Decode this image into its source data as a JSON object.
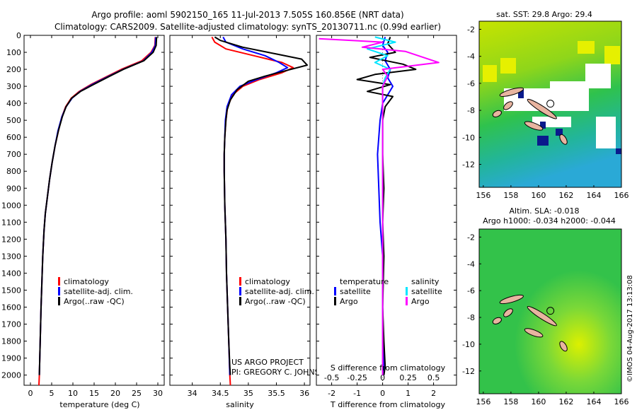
{
  "chart_data": {
    "type": "line",
    "title_line1": "Argo profile: aoml 5902150_165 11-Jul-2013 7.505S 160.856E (NRT data)",
    "title_line2": "Climatology: CARS2009. Satellite-adjusted climatology: synTS_20130711.nc (0.99d earlier)",
    "depth_ticks": [
      0,
      100,
      200,
      300,
      400,
      500,
      600,
      700,
      800,
      900,
      1000,
      1100,
      1200,
      1300,
      1400,
      1500,
      1600,
      1700,
      1800,
      1900,
      2000
    ],
    "depth_range": [
      0,
      2060
    ],
    "colors": {
      "clim": "#ff0000",
      "sat": "#0000ff",
      "argo": "#000000",
      "sat_s": "#00e5ff",
      "argo_s": "#ff00ff"
    },
    "temperature": {
      "xlabel": "temperature (deg C)",
      "xlim": [
        -1.5,
        31.5
      ],
      "xticks": [
        0,
        5,
        10,
        15,
        20,
        25,
        30
      ],
      "legend": [
        "climatology",
        "satellite-adj. clim.",
        "Argo(..raw -QC)"
      ],
      "series": [
        {
          "name": "climatology",
          "color": "clim",
          "points": [
            [
              29.4,
              10
            ],
            [
              29.3,
              60
            ],
            [
              28.4,
              100
            ],
            [
              26.2,
              150
            ],
            [
              21.4,
              200
            ],
            [
              18.2,
              240
            ],
            [
              14.2,
              290
            ],
            [
              11.5,
              330
            ],
            [
              9.6,
              370
            ],
            [
              8.3,
              420
            ],
            [
              7.4,
              480
            ],
            [
              6.6,
              560
            ],
            [
              5.8,
              650
            ],
            [
              5.1,
              750
            ],
            [
              4.5,
              850
            ],
            [
              4.0,
              950
            ],
            [
              3.5,
              1050
            ],
            [
              3.2,
              1150
            ],
            [
              2.9,
              1300
            ],
            [
              2.7,
              1450
            ],
            [
              2.5,
              1600
            ],
            [
              2.3,
              1800
            ],
            [
              2.1,
              2000
            ],
            [
              2.0,
              2060
            ]
          ]
        },
        {
          "name": "satellite",
          "color": "sat",
          "points": [
            [
              29.5,
              10
            ],
            [
              29.4,
              60
            ],
            [
              28.6,
              100
            ],
            [
              26.6,
              150
            ],
            [
              21.8,
              200
            ],
            [
              18.5,
              240
            ],
            [
              14.5,
              290
            ],
            [
              11.7,
              330
            ],
            [
              9.8,
              370
            ],
            [
              8.4,
              420
            ],
            [
              7.4,
              480
            ],
            [
              6.5,
              560
            ],
            [
              5.8,
              650
            ],
            [
              5.1,
              750
            ],
            [
              4.5,
              850
            ],
            [
              4.0,
              950
            ],
            [
              3.5,
              1050
            ],
            [
              3.2,
              1150
            ],
            [
              2.9,
              1300
            ],
            [
              2.7,
              1450
            ],
            [
              2.5,
              1600
            ],
            [
              2.3,
              1800
            ],
            [
              2.1,
              2000
            ]
          ]
        },
        {
          "name": "Argo",
          "color": "argo",
          "points": [
            [
              29.7,
              10
            ],
            [
              29.6,
              60
            ],
            [
              28.9,
              100
            ],
            [
              26.7,
              150
            ],
            [
              21.9,
              200
            ],
            [
              18.7,
              240
            ],
            [
              14.8,
              290
            ],
            [
              11.8,
              330
            ],
            [
              9.7,
              370
            ],
            [
              8.4,
              420
            ],
            [
              7.5,
              480
            ],
            [
              6.6,
              560
            ],
            [
              5.8,
              650
            ],
            [
              5.1,
              750
            ],
            [
              4.5,
              850
            ],
            [
              4.0,
              950
            ],
            [
              3.5,
              1050
            ],
            [
              3.2,
              1150
            ],
            [
              2.9,
              1300
            ],
            [
              2.7,
              1450
            ],
            [
              2.5,
              1600
            ],
            [
              2.3,
              1800
            ],
            [
              2.1,
              2000
            ]
          ]
        }
      ]
    },
    "salinity": {
      "xlabel": "salinity",
      "xlim": [
        33.6,
        36.1
      ],
      "xticks": [
        34,
        34.5,
        35,
        35.5,
        36
      ],
      "legend": [
        "climatology",
        "satellite-adj. clim.",
        "Argo(..raw -QC)"
      ],
      "series": [
        {
          "name": "climatology",
          "color": "clim",
          "points": [
            [
              34.35,
              10
            ],
            [
              34.4,
              40
            ],
            [
              34.6,
              80
            ],
            [
              35.1,
              120
            ],
            [
              35.6,
              160
            ],
            [
              35.8,
              190
            ],
            [
              35.6,
              220
            ],
            [
              35.2,
              260
            ],
            [
              34.9,
              300
            ],
            [
              34.72,
              350
            ],
            [
              34.63,
              420
            ],
            [
              34.6,
              500
            ],
            [
              34.58,
              600
            ],
            [
              34.57,
              700
            ],
            [
              34.57,
              800
            ],
            [
              34.58,
              1000
            ],
            [
              34.6,
              1200
            ],
            [
              34.61,
              1400
            ],
            [
              34.63,
              1600
            ],
            [
              34.65,
              1800
            ],
            [
              34.67,
              2000
            ],
            [
              34.68,
              2060
            ]
          ]
        },
        {
          "name": "satellite",
          "color": "sat",
          "points": [
            [
              34.55,
              10
            ],
            [
              34.6,
              40
            ],
            [
              34.9,
              80
            ],
            [
              35.3,
              120
            ],
            [
              35.55,
              160
            ],
            [
              35.7,
              190
            ],
            [
              35.5,
              220
            ],
            [
              35.15,
              260
            ],
            [
              34.85,
              300
            ],
            [
              34.7,
              350
            ],
            [
              34.62,
              420
            ],
            [
              34.59,
              500
            ],
            [
              34.58,
              600
            ],
            [
              34.57,
              700
            ],
            [
              34.57,
              800
            ],
            [
              34.58,
              1000
            ],
            [
              34.6,
              1200
            ],
            [
              34.61,
              1400
            ],
            [
              34.63,
              1600
            ],
            [
              34.65,
              1800
            ],
            [
              34.67,
              2000
            ]
          ]
        },
        {
          "name": "Argo",
          "color": "argo",
          "points": [
            [
              34.4,
              10
            ],
            [
              34.5,
              30
            ],
            [
              34.9,
              70
            ],
            [
              35.5,
              110
            ],
            [
              35.95,
              140
            ],
            [
              36.05,
              175
            ],
            [
              35.7,
              205
            ],
            [
              35.3,
              240
            ],
            [
              35.0,
              270
            ],
            [
              34.8,
              320
            ],
            [
              34.68,
              380
            ],
            [
              34.62,
              440
            ],
            [
              34.6,
              500
            ],
            [
              34.58,
              600
            ],
            [
              34.57,
              700
            ],
            [
              34.57,
              800
            ],
            [
              34.58,
              1000
            ],
            [
              34.6,
              1200
            ],
            [
              34.61,
              1400
            ],
            [
              34.63,
              1600
            ],
            [
              34.65,
              1800
            ],
            [
              34.67,
              1950
            ],
            [
              34.68,
              2000
            ]
          ]
        }
      ]
    },
    "difference": {
      "xlabel_bottom": "T difference from climatology",
      "xlabel_top": "S difference from climatology",
      "xlim": [
        -2.6,
        2.9
      ],
      "t_ticks": [
        -2,
        -1,
        0,
        1,
        2
      ],
      "s_ticks": [
        "-0.5",
        "-0.25",
        "0",
        "0.25",
        "0.5"
      ],
      "s_tick_positions": [
        -2,
        -1,
        0,
        1,
        2
      ],
      "legend_headers": [
        "temperature",
        "salinity"
      ],
      "legend": [
        "satellite",
        "Argo",
        "satellite",
        "Argo"
      ],
      "series": [
        {
          "name": "T satellite",
          "color": "sat",
          "points": [
            [
              0.1,
              10
            ],
            [
              0.0,
              60
            ],
            [
              0.2,
              100
            ],
            [
              0.1,
              150
            ],
            [
              0.3,
              200
            ],
            [
              0.2,
              250
            ],
            [
              0.4,
              300
            ],
            [
              0.2,
              350
            ],
            [
              0.0,
              400
            ],
            [
              -0.1,
              500
            ],
            [
              -0.2,
              700
            ],
            [
              -0.15,
              900
            ],
            [
              -0.1,
              1100
            ],
            [
              0.0,
              1300
            ],
            [
              0.0,
              1600
            ],
            [
              0.05,
              1900
            ],
            [
              0.05,
              2000
            ]
          ]
        },
        {
          "name": "T Argo",
          "color": "argo",
          "points": [
            [
              0.3,
              10
            ],
            [
              0.2,
              50
            ],
            [
              0.5,
              100
            ],
            [
              -0.5,
              130
            ],
            [
              0.8,
              170
            ],
            [
              1.3,
              200
            ],
            [
              -0.3,
              230
            ],
            [
              -1.0,
              260
            ],
            [
              0.3,
              290
            ],
            [
              -0.6,
              330
            ],
            [
              0.4,
              360
            ],
            [
              0.1,
              420
            ],
            [
              0.0,
              500
            ],
            [
              0.0,
              700
            ],
            [
              0.05,
              900
            ],
            [
              0.0,
              1100
            ],
            [
              0.05,
              1300
            ],
            [
              0.0,
              1600
            ],
            [
              0.05,
              1800
            ],
            [
              0.1,
              1950
            ],
            [
              0.05,
              2000
            ]
          ]
        },
        {
          "name": "S satellite",
          "color": "sat_s",
          "points": [
            [
              -0.3,
              10
            ],
            [
              0.5,
              40
            ],
            [
              -0.6,
              80
            ],
            [
              0.2,
              120
            ],
            [
              -0.3,
              160
            ],
            [
              0.3,
              200
            ],
            [
              0.1,
              250
            ],
            [
              0.0,
              300
            ],
            [
              0.0,
              400
            ],
            [
              0.0,
              600
            ],
            [
              0.0,
              900
            ],
            [
              0.0,
              1200
            ],
            [
              0.0,
              1500
            ],
            [
              0.0,
              1800
            ],
            [
              0.0,
              2000
            ]
          ]
        },
        {
          "name": "S Argo",
          "color": "argo_s",
          "points": [
            [
              -2.5,
              20
            ],
            [
              0.0,
              40
            ],
            [
              -0.8,
              70
            ],
            [
              0.9,
              95
            ],
            [
              2.2,
              160
            ],
            [
              0.0,
              200
            ],
            [
              0.2,
              240
            ],
            [
              0.0,
              300
            ],
            [
              0.0,
              400
            ],
            [
              0.0,
              700
            ],
            [
              0.0,
              1000
            ],
            [
              0.0,
              1300
            ],
            [
              0.0,
              1600
            ],
            [
              0.0,
              1900
            ],
            [
              0.0,
              2000
            ]
          ]
        }
      ]
    },
    "map_sst": {
      "title": "sat. SST: 29.8  Argo: 29.4",
      "xticks": [
        156,
        158,
        160,
        162,
        164,
        166
      ],
      "yticks": [
        -2,
        -4,
        -6,
        -8,
        -10,
        -12
      ],
      "lon_range": [
        155.7,
        166.0
      ],
      "lat_range": [
        -13.7,
        -1.4
      ],
      "argo_position": [
        160.856,
        -7.505
      ]
    },
    "map_sla": {
      "title1": "Altim. SLA: -0.018",
      "title2": "Argo h1000: -0.034  h2000: -0.044",
      "xticks": [
        156,
        158,
        160,
        162,
        164,
        166
      ],
      "yticks": [
        -2,
        -4,
        -6,
        -8,
        -10,
        -12
      ],
      "lon_range": [
        155.7,
        166.0
      ],
      "lat_range": [
        -13.7,
        -1.4
      ],
      "argo_position": [
        160.856,
        -7.505
      ]
    },
    "credit_project": "US ARGO PROJECT",
    "credit_pi": "PI: GREGORY C. JOHNSON",
    "imos_stamp": "©IMOS 04-Aug-2017 13:13:08"
  }
}
